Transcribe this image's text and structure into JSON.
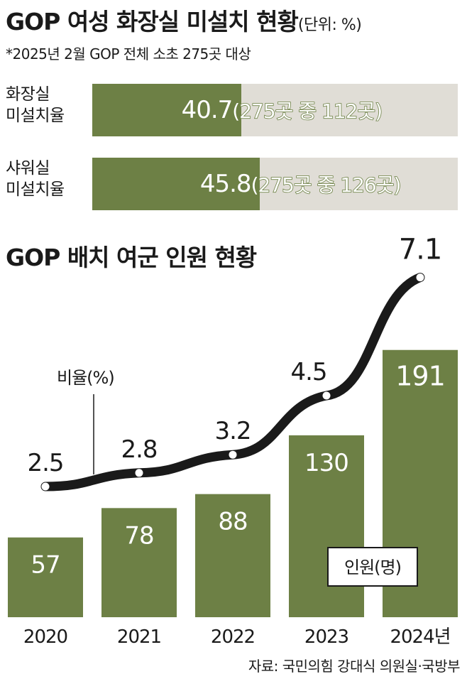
{
  "title_top": "GOP 여성 화장실 미설치 현황",
  "title_top_unit": "(단위: %)",
  "note": "*2025년 2월 GOP 전체 소초 275곳 대상",
  "bars_h": [
    {
      "label_line1": "화장실",
      "label_line2": "미설치율",
      "value": 40.7,
      "value_text": "40.7",
      "detail": "(275곳 중 112곳)"
    },
    {
      "label_line1": "샤워실",
      "label_line2": "미설치율",
      "value": 45.8,
      "value_text": "45.8",
      "detail": "(275곳 중 126곳)"
    }
  ],
  "title_bottom": "GOP 배치 여군 인원 현황",
  "ratio_label": "비율(%)",
  "count_label": "인원(명)",
  "source": "자료: 국민의힘 강대식 의원실·국방부",
  "colors": {
    "bar": "#6d8045",
    "track": "#e0ddd6",
    "line": "#1a1a1a",
    "text": "#1a1a1a"
  },
  "chart_data": [
    {
      "type": "bar",
      "title": "GOP 여성 화장실 미설치 현황",
      "unit": "%",
      "categories": [
        "화장실 미설치율",
        "샤워실 미설치율"
      ],
      "values": [
        40.7,
        45.8
      ],
      "annotations": [
        "(275곳 중 112곳)",
        "(275곳 중 126곳)"
      ],
      "xlim": [
        0,
        100
      ]
    },
    {
      "type": "bar",
      "title": "GOP 배치 여군 인원 현황",
      "categories": [
        "2020",
        "2021",
        "2022",
        "2023",
        "2024년"
      ],
      "series": [
        {
          "name": "인원(명)",
          "type": "bar",
          "values": [
            57,
            78,
            88,
            130,
            191
          ]
        },
        {
          "name": "비율(%)",
          "type": "line",
          "values": [
            2.5,
            2.8,
            3.2,
            4.5,
            7.1
          ]
        }
      ]
    }
  ]
}
